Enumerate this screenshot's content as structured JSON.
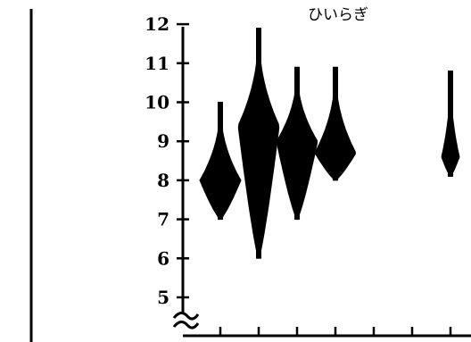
{
  "chart_data": {
    "type": "violin",
    "title": "ひいらぎ",
    "xlabel": "",
    "ylabel": "",
    "ylim": [
      5,
      12
    ],
    "y_ticks": [
      "5",
      "6",
      "7",
      "8",
      "9",
      "10",
      "11",
      "12"
    ],
    "axis_break": true,
    "grid": false,
    "legend": "none",
    "series_color": "#000000",
    "violins": [
      {
        "index": 1,
        "min": 7.0,
        "max": 10.0,
        "mode": 8.0
      },
      {
        "index": 2,
        "min": 6.0,
        "max": 11.9,
        "mode": 9.4
      },
      {
        "index": 3,
        "min": 7.0,
        "max": 10.9,
        "mode": 9.0
      },
      {
        "index": 4,
        "min": 8.0,
        "max": 10.9,
        "mode": 8.7
      },
      {
        "index": 7,
        "min": 8.1,
        "max": 10.8,
        "mode": 8.6
      }
    ]
  }
}
